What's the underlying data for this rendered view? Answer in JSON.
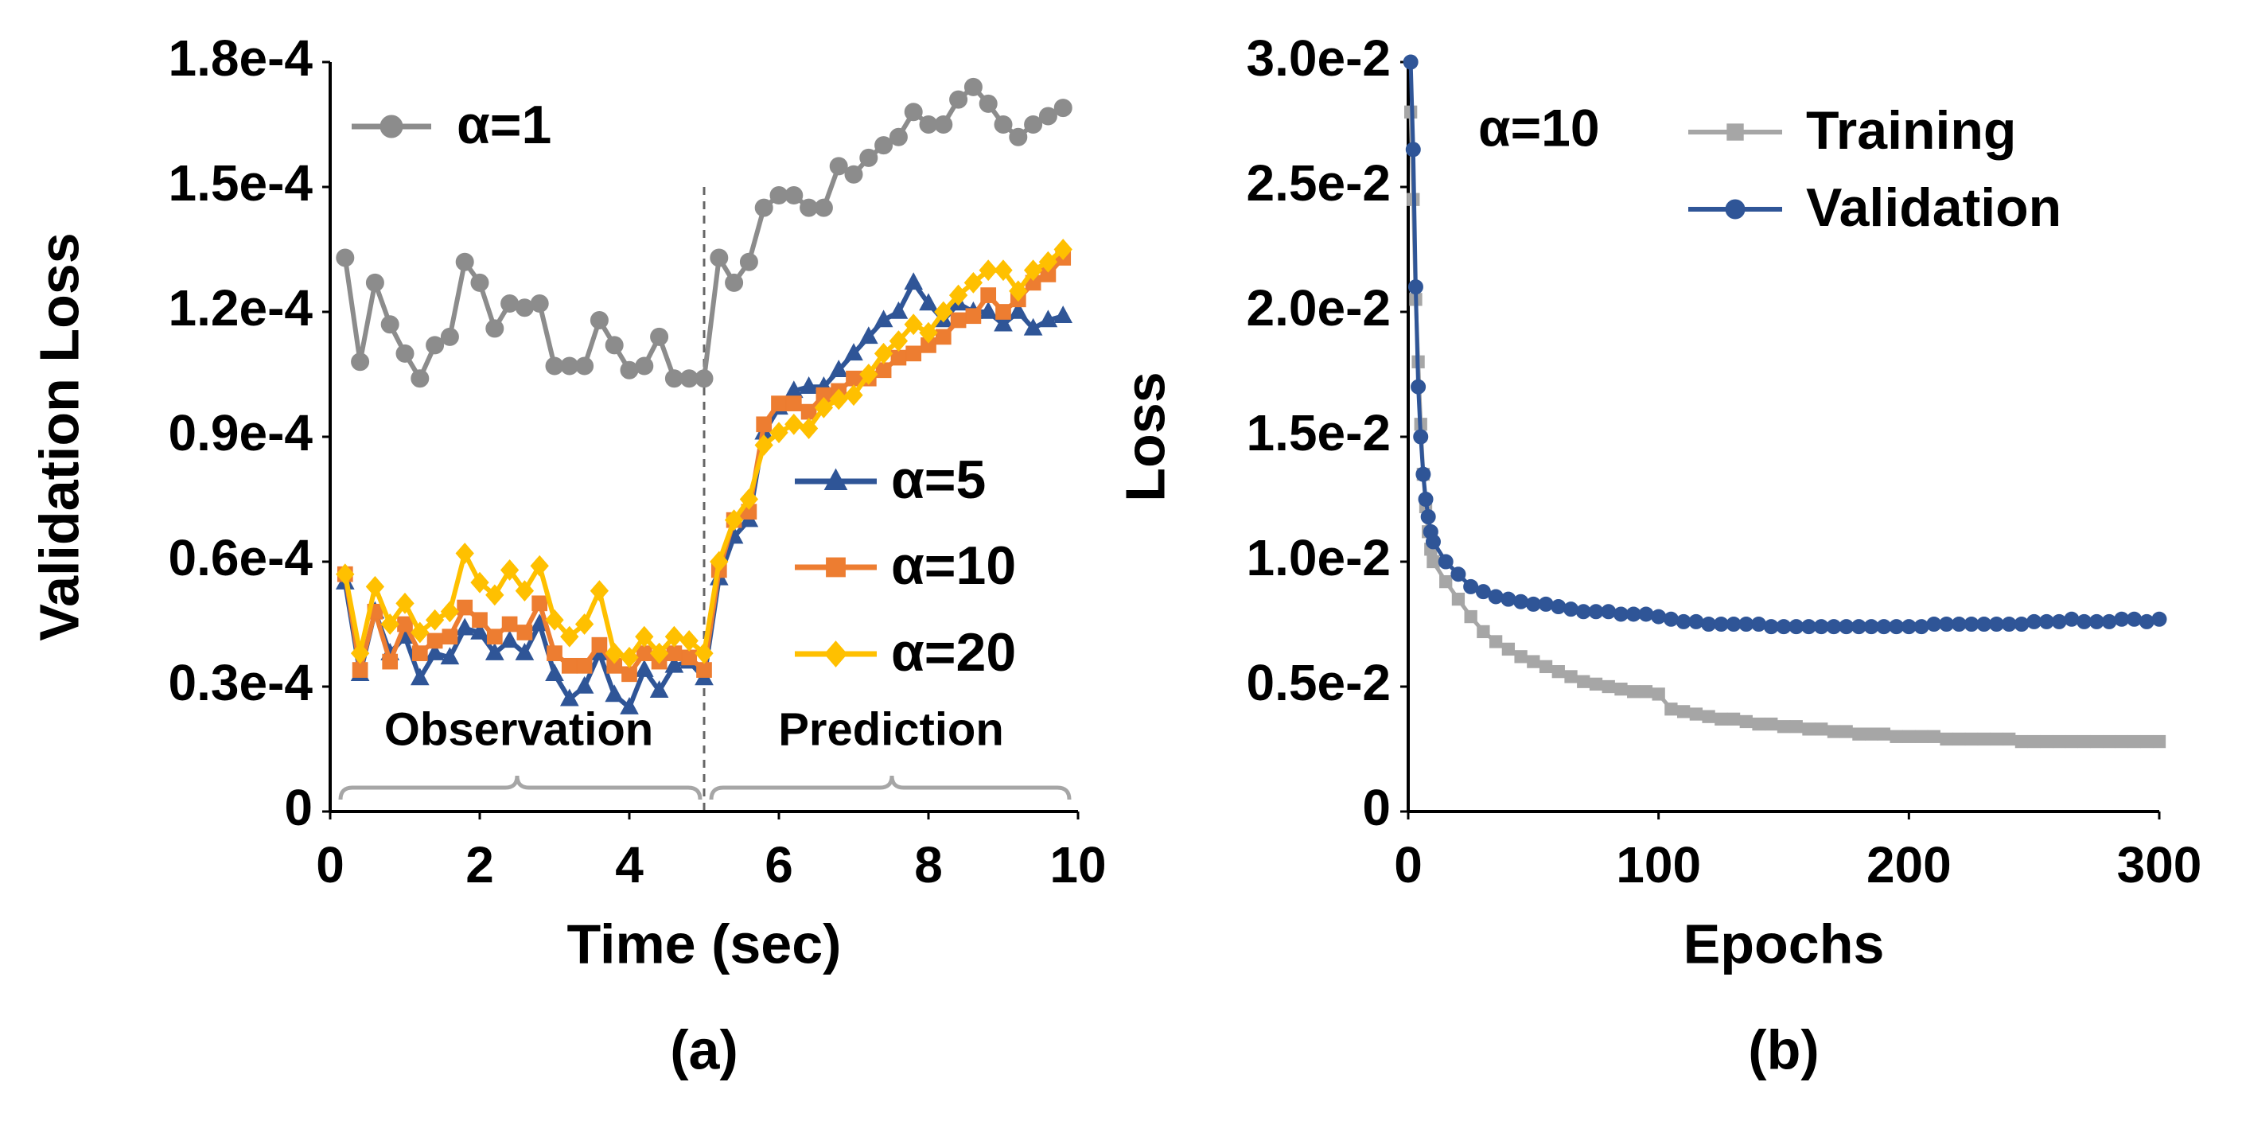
{
  "chart_data": [
    {
      "type": "line",
      "caption": "(a)",
      "xlabel": "Time (sec)",
      "ylabel": "Validation Loss",
      "annotations": [
        "Observation",
        "Prediction"
      ],
      "xlim": [
        0,
        10
      ],
      "xticks": [
        0,
        2,
        4,
        6,
        8,
        10
      ],
      "ylim": [
        0,
        0.00018
      ],
      "yticks": [
        0,
        {
          "value": 3e-05,
          "label": "0.3e-4"
        },
        {
          "value": 6e-05,
          "label": "0.6e-4"
        },
        {
          "value": 9e-05,
          "label": "0.9e-4"
        },
        {
          "value": 0.00012,
          "label": "1.2e-4"
        },
        {
          "value": 0.00015,
          "label": "1.5e-4"
        },
        {
          "value": 0.00018,
          "label": "1.8e-4"
        }
      ],
      "x": [
        0.2,
        0.4,
        0.6,
        0.8,
        1.0,
        1.2,
        1.4,
        1.6,
        1.8,
        2.0,
        2.2,
        2.4,
        2.6,
        2.8,
        3.0,
        3.2,
        3.4,
        3.6,
        3.8,
        4.0,
        4.2,
        4.4,
        4.6,
        4.8,
        5.0,
        5.2,
        5.4,
        5.6,
        5.8,
        6.0,
        6.2,
        6.4,
        6.6,
        6.8,
        7.0,
        7.2,
        7.4,
        7.6,
        7.8,
        8.0,
        8.2,
        8.4,
        8.6,
        8.8,
        9.0,
        9.2,
        9.4,
        9.6,
        9.8
      ],
      "series": [
        {
          "name": "α=1",
          "color": "#8c8c8c",
          "marker": "circle",
          "values": [
            0.000133,
            0.000108,
            0.000127,
            0.000117,
            0.00011,
            0.000104,
            0.000112,
            0.000114,
            0.000132,
            0.000127,
            0.000116,
            0.000122,
            0.000121,
            0.000122,
            0.000107,
            0.000107,
            0.000107,
            0.000118,
            0.000112,
            0.000106,
            0.000107,
            0.000114,
            0.000104,
            0.000104,
            0.000104,
            0.000133,
            0.000127,
            0.000132,
            0.000145,
            0.000148,
            0.000148,
            0.000145,
            0.000145,
            0.000155,
            0.000153,
            0.000157,
            0.00016,
            0.000162,
            0.000168,
            0.000165,
            0.000165,
            0.000171,
            0.000174,
            0.00017,
            0.000165,
            0.000162,
            0.000165,
            0.000167,
            0.000169
          ]
        },
        {
          "name": "α=5",
          "color": "#2f5597",
          "marker": "triangle",
          "values": [
            5.5e-05,
            3.3e-05,
            4.8e-05,
            3.8e-05,
            4.2e-05,
            3.2e-05,
            3.8e-05,
            3.7e-05,
            4.4e-05,
            4.3e-05,
            3.8e-05,
            4.1e-05,
            3.8e-05,
            4.5e-05,
            3.3e-05,
            2.7e-05,
            3e-05,
            3.8e-05,
            2.8e-05,
            2.5e-05,
            3.4e-05,
            2.9e-05,
            3.5e-05,
            3.6e-05,
            3.2e-05,
            5.6e-05,
            6.6e-05,
            7e-05,
            9.1e-05,
            9.7e-05,
            0.000101,
            0.000102,
            0.000102,
            0.000106,
            0.00011,
            0.000114,
            0.000118,
            0.00012,
            0.000127,
            0.000122,
            0.000118,
            0.000122,
            0.00012,
            0.00012,
            0.000117,
            0.00012,
            0.000116,
            0.000118,
            0.000119
          ]
        },
        {
          "name": "α=10",
          "color": "#ed7d31",
          "marker": "square",
          "values": [
            5.7e-05,
            3.4e-05,
            4.8e-05,
            3.6e-05,
            4.5e-05,
            3.8e-05,
            4.1e-05,
            4.2e-05,
            4.9e-05,
            4.6e-05,
            4.2e-05,
            4.5e-05,
            4.3e-05,
            5e-05,
            3.8e-05,
            3.5e-05,
            3.5e-05,
            4e-05,
            3.5e-05,
            3.3e-05,
            3.8e-05,
            3.6e-05,
            3.8e-05,
            3.7e-05,
            3.4e-05,
            5.8e-05,
            7e-05,
            7.2e-05,
            9.3e-05,
            9.8e-05,
            9.8e-05,
            9.6e-05,
            0.0001,
            0.000101,
            0.000104,
            0.000104,
            0.000106,
            0.000109,
            0.00011,
            0.000112,
            0.000114,
            0.000118,
            0.000119,
            0.000124,
            0.00012,
            0.000123,
            0.000127,
            0.000129,
            0.000133
          ]
        },
        {
          "name": "α=20",
          "color": "#ffc000",
          "marker": "diamond",
          "values": [
            5.7e-05,
            3.8e-05,
            5.4e-05,
            4.5e-05,
            5e-05,
            4.3e-05,
            4.6e-05,
            4.8e-05,
            6.2e-05,
            5.5e-05,
            5.2e-05,
            5.8e-05,
            5.3e-05,
            5.9e-05,
            4.6e-05,
            4.2e-05,
            4.5e-05,
            5.3e-05,
            3.8e-05,
            3.7e-05,
            4.2e-05,
            3.8e-05,
            4.2e-05,
            4.1e-05,
            3.8e-05,
            6e-05,
            7e-05,
            7.5e-05,
            8.8e-05,
            9.1e-05,
            9.3e-05,
            9.2e-05,
            9.7e-05,
            9.9e-05,
            0.0001,
            0.000105,
            0.00011,
            0.000113,
            0.000117,
            0.000115,
            0.00012,
            0.000124,
            0.000127,
            0.00013,
            0.00013,
            0.000125,
            0.00013,
            0.000132,
            0.000135
          ]
        }
      ]
    },
    {
      "type": "line",
      "caption": "(b)",
      "xlabel": "Epochs",
      "ylabel": "Loss",
      "annotations": [
        "α=10"
      ],
      "xlim": [
        0,
        300
      ],
      "xticks": [
        0,
        100,
        200,
        300
      ],
      "ylim": [
        0,
        0.03
      ],
      "yticks": [
        0,
        {
          "value": 0.005,
          "label": "0.5e-2"
        },
        {
          "value": 0.01,
          "label": "1.0e-2"
        },
        {
          "value": 0.015,
          "label": "1.5e-2"
        },
        {
          "value": 0.02,
          "label": "2.0e-2"
        },
        {
          "value": 0.025,
          "label": "2.5e-2"
        },
        {
          "value": 0.03,
          "label": "3.0e-2"
        }
      ],
      "x": [
        1,
        2,
        3,
        4,
        5,
        6,
        7,
        8,
        9,
        10,
        15,
        20,
        25,
        30,
        35,
        40,
        45,
        50,
        55,
        60,
        65,
        70,
        75,
        80,
        85,
        90,
        95,
        100,
        105,
        110,
        115,
        120,
        125,
        130,
        135,
        140,
        145,
        150,
        155,
        160,
        165,
        170,
        175,
        180,
        185,
        190,
        195,
        200,
        205,
        210,
        215,
        220,
        225,
        230,
        235,
        240,
        245,
        250,
        255,
        260,
        265,
        270,
        275,
        280,
        285,
        290,
        295,
        300
      ],
      "series": [
        {
          "name": "Training",
          "color": "#a6a6a6",
          "marker": "square",
          "values": [
            0.028,
            0.0245,
            0.0205,
            0.018,
            0.0155,
            0.0135,
            0.0122,
            0.0112,
            0.0105,
            0.01,
            0.0092,
            0.0085,
            0.0078,
            0.0072,
            0.0068,
            0.0065,
            0.0062,
            0.006,
            0.0058,
            0.0056,
            0.0054,
            0.0052,
            0.0051,
            0.005,
            0.0049,
            0.0048,
            0.0048,
            0.0047,
            0.0041,
            0.004,
            0.0039,
            0.0038,
            0.0037,
            0.0037,
            0.0036,
            0.0035,
            0.0035,
            0.0034,
            0.0034,
            0.0033,
            0.0033,
            0.0032,
            0.0032,
            0.0031,
            0.0031,
            0.0031,
            0.003,
            0.003,
            0.003,
            0.003,
            0.0029,
            0.0029,
            0.0029,
            0.0029,
            0.0029,
            0.0029,
            0.0028,
            0.0028,
            0.0028,
            0.0028,
            0.0028,
            0.0028,
            0.0028,
            0.0028,
            0.0028,
            0.0028,
            0.0028,
            0.0028
          ]
        },
        {
          "name": "Validation",
          "color": "#2f5597",
          "marker": "circle",
          "values": [
            0.03,
            0.0265,
            0.021,
            0.017,
            0.015,
            0.0135,
            0.0125,
            0.0118,
            0.0112,
            0.0108,
            0.01,
            0.0095,
            0.009,
            0.0088,
            0.0086,
            0.0085,
            0.0084,
            0.0083,
            0.0083,
            0.0082,
            0.0081,
            0.008,
            0.008,
            0.008,
            0.0079,
            0.0079,
            0.0079,
            0.0078,
            0.0077,
            0.0076,
            0.0076,
            0.0075,
            0.0075,
            0.0075,
            0.0075,
            0.0075,
            0.0074,
            0.0074,
            0.0074,
            0.0074,
            0.0074,
            0.0074,
            0.0074,
            0.0074,
            0.0074,
            0.0074,
            0.0074,
            0.0074,
            0.0074,
            0.0075,
            0.0075,
            0.0075,
            0.0075,
            0.0075,
            0.0075,
            0.0075,
            0.0075,
            0.0076,
            0.0076,
            0.0076,
            0.0077,
            0.0076,
            0.0076,
            0.0076,
            0.0077,
            0.0077,
            0.0076,
            0.0077
          ]
        }
      ]
    }
  ]
}
